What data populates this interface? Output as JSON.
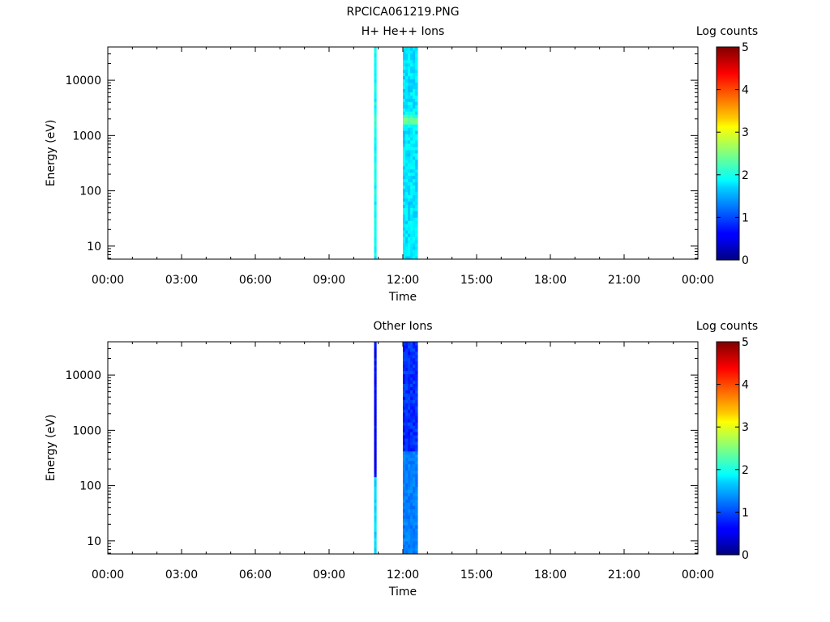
{
  "figure": {
    "title": "RPCICA061219.PNG"
  },
  "chart_data": [
    {
      "type": "heatmap",
      "id": "top",
      "title": "H+ He++ Ions",
      "xlabel": "Time",
      "ylabel": "Energy (eV)",
      "x_ticks": [
        "00:00",
        "03:00",
        "06:00",
        "09:00",
        "12:00",
        "15:00",
        "18:00",
        "21:00",
        "00:00"
      ],
      "x_tick_hours": [
        0,
        3,
        6,
        9,
        12,
        15,
        18,
        21,
        24
      ],
      "xlim_hours": [
        0,
        24
      ],
      "y_scale": "log",
      "ylim": [
        5.8,
        40000
      ],
      "y_ticks": [
        10,
        100,
        1000,
        10000
      ],
      "y_tick_labels": [
        "10",
        "100",
        "1000",
        "10000"
      ],
      "colorbar": {
        "label": "Log counts",
        "range": [
          0,
          5
        ],
        "ticks": [
          "0",
          "1",
          "2",
          "3",
          "4",
          "5"
        ]
      },
      "bands": [
        {
          "t_start": 10.83,
          "t_end": 10.92,
          "base_level": 1.9,
          "peak_energy": 1900,
          "peak_level": 2.3
        },
        {
          "t_start": 12.0,
          "t_end": 12.6,
          "base_level": 1.75,
          "peak_energy": 1900,
          "peak_level": 2.5
        }
      ]
    },
    {
      "type": "heatmap",
      "id": "bottom",
      "title": "Other Ions",
      "xlabel": "Time",
      "ylabel": "Energy (eV)",
      "x_ticks": [
        "00:00",
        "03:00",
        "06:00",
        "09:00",
        "12:00",
        "15:00",
        "18:00",
        "21:00",
        "00:00"
      ],
      "x_tick_hours": [
        0,
        3,
        6,
        9,
        12,
        15,
        18,
        21,
        24
      ],
      "xlim_hours": [
        0,
        24
      ],
      "y_scale": "log",
      "ylim": [
        5.8,
        40000
      ],
      "y_ticks": [
        10,
        100,
        1000,
        10000
      ],
      "y_tick_labels": [
        "10",
        "100",
        "1000",
        "10000"
      ],
      "colorbar": {
        "label": "Log counts",
        "range": [
          0,
          5
        ],
        "ticks": [
          "0",
          "1",
          "2",
          "3",
          "4",
          "5"
        ]
      },
      "bands": [
        {
          "t_start": 10.83,
          "t_end": 10.92,
          "base_level": 0.6,
          "low_energy_level": 1.7,
          "low_energy_cutoff": 150
        },
        {
          "t_start": 12.0,
          "t_end": 12.6,
          "base_level": 0.85,
          "low_energy_level": 1.25,
          "low_energy_cutoff": 400
        }
      ]
    }
  ]
}
